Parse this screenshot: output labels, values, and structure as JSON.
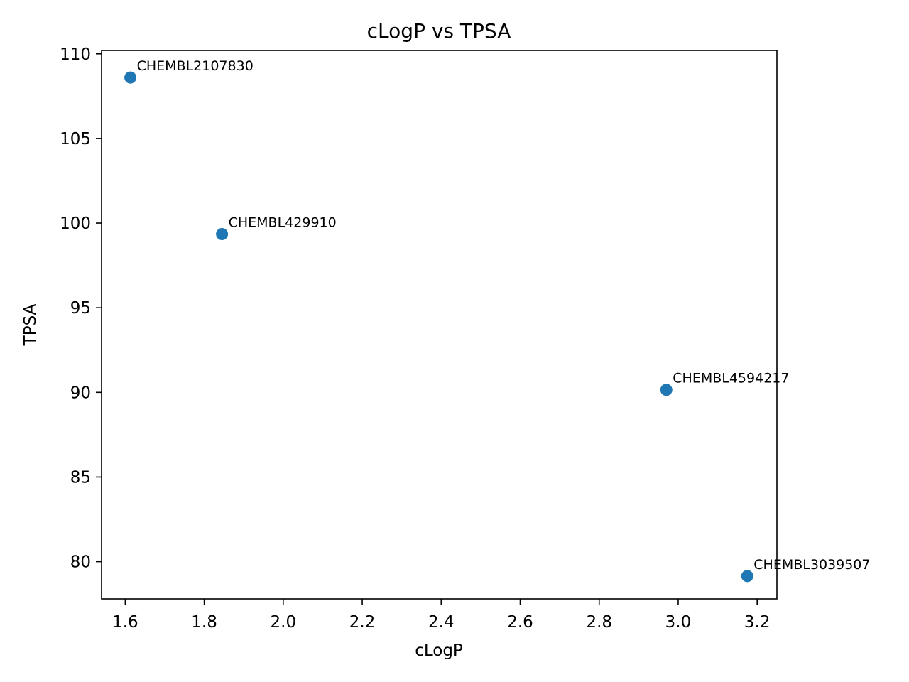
{
  "chart_data": {
    "type": "scatter",
    "title": "cLogP vs TPSA",
    "xlabel": "cLogP",
    "ylabel": "TPSA",
    "xlim": [
      1.54,
      3.25
    ],
    "ylim": [
      77.8,
      110.2
    ],
    "xticks": [
      1.6,
      1.8,
      2.0,
      2.2,
      2.4,
      2.6,
      2.8,
      3.0,
      3.2
    ],
    "xtick_labels": [
      "1.6",
      "1.8",
      "2.0",
      "2.2",
      "2.4",
      "2.6",
      "2.8",
      "3.0",
      "3.2"
    ],
    "yticks": [
      80,
      85,
      90,
      95,
      100,
      105,
      110
    ],
    "ytick_labels": [
      "80",
      "85",
      "90",
      "95",
      "100",
      "105",
      "110"
    ],
    "grid": false,
    "color": "#1f77b4",
    "points": [
      {
        "label": "CHEMBL2107830",
        "x": 1.613,
        "y": 108.6
      },
      {
        "label": "CHEMBL429910",
        "x": 1.845,
        "y": 99.35
      },
      {
        "label": "CHEMBL4594217",
        "x": 2.97,
        "y": 90.15
      },
      {
        "label": "CHEMBL3039507",
        "x": 3.175,
        "y": 79.15
      }
    ]
  }
}
